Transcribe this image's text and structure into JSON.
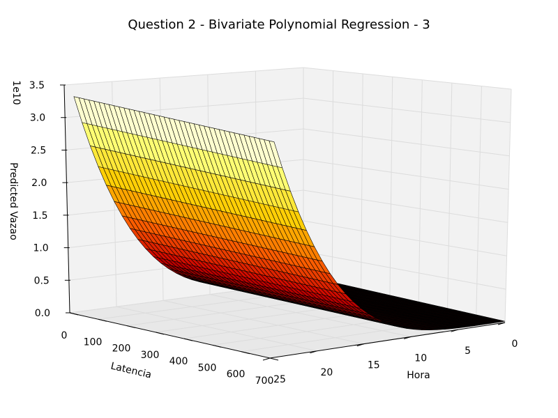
{
  "chart_data": {
    "type": "surface3d",
    "title": "Question 2 - Bivariate Polynomial Regression - 3",
    "xlabel": "Latencia",
    "ylabel": "Hora",
    "zlabel": "Predicted Vazao",
    "z_offset_label": "1e10",
    "x_ticks": [
      "0",
      "100",
      "200",
      "300",
      "400",
      "500",
      "600",
      "700"
    ],
    "y_ticks": [
      "0",
      "5",
      "10",
      "15",
      "20",
      "25"
    ],
    "z_ticks": [
      "0.0",
      "0.5",
      "1.0",
      "1.5",
      "2.0",
      "2.5",
      "3.0",
      "3.5"
    ],
    "xlim": [
      0,
      700
    ],
    "ylim": [
      0,
      25
    ],
    "zlim": [
      0,
      3.5
    ],
    "z_scale": 10000000000.0,
    "surface": {
      "latencia_range": [
        0,
        700
      ],
      "hora_range": [
        0,
        24
      ],
      "pred_vazao_at_hora_0": 0.02,
      "pred_vazao_at_hora_24": 3.3,
      "description_shape": "flat near zero for low Latencia, rising steeply toward max Latencia, nearly constant along Hora"
    },
    "colormap": [
      "#000000",
      "#cc0000",
      "#ff6600",
      "#ffcc00",
      "#ffff66",
      "#ffffff"
    ],
    "grid": true
  }
}
